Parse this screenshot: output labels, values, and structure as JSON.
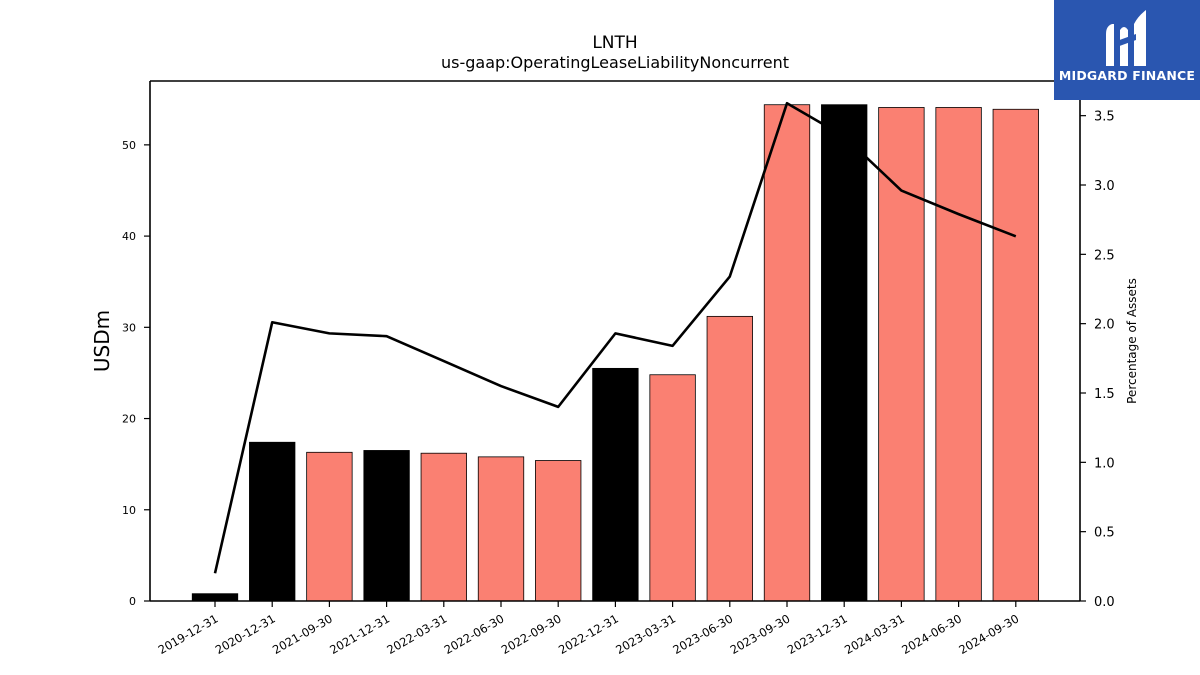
{
  "chart_data": {
    "type": "bar",
    "title": "LNTH",
    "subtitle": "us-gaap:OperatingLeaseLiabilityNoncurrent",
    "ylabel": "USDm",
    "y2label": "Percentage of Assets",
    "ylim": [
      0,
      57
    ],
    "y2lim": [
      0,
      3.75
    ],
    "yticks": [
      0,
      10,
      20,
      30,
      40,
      50
    ],
    "y2ticks": [
      0.0,
      0.5,
      1.0,
      1.5,
      2.0,
      2.5,
      3.0,
      3.5
    ],
    "categories": [
      "2019-12-31",
      "2020-12-31",
      "2021-09-30",
      "2021-12-31",
      "2022-03-31",
      "2022-06-30",
      "2022-09-30",
      "2022-12-31",
      "2023-03-31",
      "2023-06-30",
      "2023-09-30",
      "2023-12-31",
      "2024-03-31",
      "2024-06-30",
      "2024-09-30"
    ],
    "series": [
      {
        "type": "bar",
        "values": [
          0.8,
          17.4,
          16.3,
          16.5,
          16.2,
          15.8,
          15.4,
          25.5,
          24.8,
          31.2,
          54.4,
          54.4,
          54.1,
          54.1,
          53.9
        ],
        "bar_colors": [
          "#000000",
          "#000000",
          "#fa8072",
          "#000000",
          "#fa8072",
          "#fa8072",
          "#fa8072",
          "#000000",
          "#fa8072",
          "#fa8072",
          "#fa8072",
          "#000000",
          "#fa8072",
          "#fa8072",
          "#fa8072"
        ]
      },
      {
        "type": "line",
        "axis": "right",
        "color": "#000000",
        "values": [
          0.2,
          2.01,
          1.93,
          1.91,
          1.73,
          1.55,
          1.4,
          1.93,
          1.84,
          2.34,
          3.59,
          3.35,
          2.96,
          2.79,
          2.63
        ]
      }
    ],
    "grid": false
  },
  "logo": {
    "text": "MIDGARD FINANCE",
    "bg_color": "#2a56b0",
    "icon": "midgard-logo-icon"
  }
}
